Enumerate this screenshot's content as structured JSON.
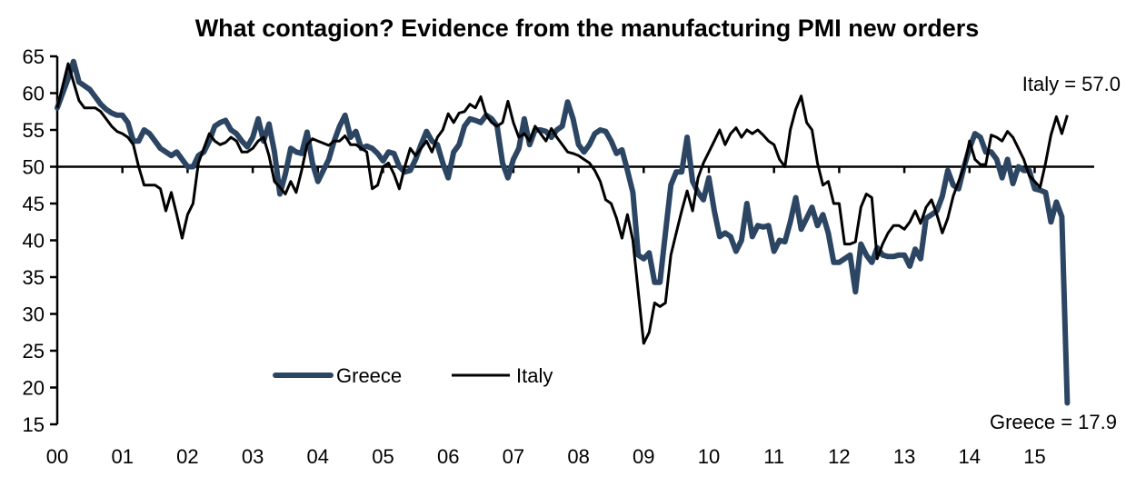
{
  "chart_data": {
    "type": "line",
    "title": "What contagion? Evidence from the manufacturing PMI new orders",
    "xlabel": "",
    "ylabel": "",
    "ylim": [
      15,
      65
    ],
    "yticks": [
      15,
      20,
      25,
      30,
      35,
      40,
      45,
      50,
      55,
      60,
      65
    ],
    "ytick_labels": [
      "15",
      "20",
      "25",
      "30",
      "35",
      "40",
      "45",
      "50",
      "55",
      "60",
      "65"
    ],
    "xtick_labels": [
      "00",
      "01",
      "02",
      "03",
      "04",
      "05",
      "06",
      "07",
      "08",
      "09",
      "10",
      "11",
      "12",
      "13",
      "14",
      "15"
    ],
    "x_start": "2000-01",
    "x_frequency": "monthly",
    "reference_line": 50,
    "grid": false,
    "legend_position": "bottom-left",
    "series": [
      {
        "name": "Greece",
        "color": "#2b4563",
        "values": [
          58,
          60,
          62,
          64.3,
          61.5,
          61,
          60.5,
          59.5,
          58.5,
          57.8,
          57.3,
          57,
          57,
          56,
          53.5,
          53.5,
          55,
          54.5,
          53.5,
          52.5,
          52,
          51.5,
          52,
          51,
          50,
          50,
          51.5,
          52,
          53.5,
          55.5,
          56,
          56.3,
          55,
          54.5,
          53.5,
          52.7,
          54,
          56.5,
          53.5,
          55.8,
          52,
          46.3,
          49,
          52.5,
          52,
          51.8,
          54.7,
          50.5,
          48,
          49.5,
          51,
          53.5,
          55.5,
          57,
          54,
          54.8,
          52.5,
          52.8,
          52.5,
          51.8,
          50.8,
          52,
          51.8,
          50,
          49.3,
          49.5,
          51,
          53,
          54.8,
          53.5,
          53,
          50.5,
          48.5,
          52,
          53,
          55.5,
          56.5,
          56.3,
          56,
          57,
          56.5,
          55.5,
          50.5,
          48.5,
          51,
          52.5,
          56.5,
          53,
          55,
          55,
          54.8,
          54,
          55,
          55.5,
          58.8,
          56.5,
          53,
          52,
          53,
          54.5,
          55,
          54.8,
          53.5,
          51.8,
          52.3,
          49.5,
          46.5,
          38,
          37.5,
          38.3,
          34.3,
          34.3,
          41,
          47.5,
          49.3,
          49.3,
          54,
          48,
          46.5,
          45.5,
          48.5,
          44,
          40.5,
          41,
          40.5,
          38.5,
          40,
          45,
          40.5,
          42,
          41.8,
          42,
          38.5,
          40,
          39.8,
          42.5,
          45.8,
          41.5,
          43,
          44.5,
          42,
          43.5,
          41,
          37,
          37,
          37.5,
          38,
          33,
          39.5,
          38,
          37,
          39,
          38,
          37.8,
          37.8,
          38,
          38,
          36.5,
          38.8,
          37.5,
          43,
          43.5,
          44,
          46,
          49.5,
          47.5,
          47,
          50,
          52.5,
          54.5,
          54,
          52,
          52,
          51,
          48.5,
          51,
          47.7,
          50,
          49.5,
          49.5,
          47,
          46.8,
          46.5,
          42.5,
          45.2,
          43.2,
          17.9
        ]
      },
      {
        "name": "Italy",
        "color": "#000000",
        "values": [
          58,
          61,
          64,
          61.5,
          59,
          58,
          58,
          58,
          57.5,
          56.5,
          55.5,
          54.8,
          54.5,
          54,
          53,
          50,
          47.5,
          47.5,
          47.5,
          47,
          44,
          46.5,
          43.5,
          40.3,
          43.5,
          45,
          50.5,
          52.5,
          54.5,
          53.5,
          53,
          53.3,
          54,
          53.5,
          52,
          52,
          52.5,
          53.5,
          54,
          51.5,
          48,
          47.2,
          46.3,
          48,
          46.5,
          49.5,
          53,
          53.8,
          53.5,
          53.2,
          52.9,
          53.5,
          53.5,
          54.2,
          53,
          53,
          52.5,
          52,
          47,
          47.5,
          50,
          50.5,
          49,
          47,
          50,
          52.5,
          51.5,
          52.5,
          53.5,
          52,
          54,
          55,
          57.2,
          56,
          57.3,
          57.5,
          58.5,
          58,
          59.5,
          57,
          56,
          55.5,
          56,
          58.9,
          56,
          54,
          54.5,
          53.5,
          55.5,
          54.5,
          53.5,
          55.2,
          54,
          53,
          52,
          51.8,
          51.5,
          51,
          50.5,
          49.5,
          48,
          45.5,
          45,
          43,
          40.3,
          43.5,
          40,
          33,
          26,
          27.5,
          31.5,
          31,
          31.5,
          38,
          41,
          44,
          46.7,
          44,
          48.5,
          50.5,
          52,
          53.5,
          55,
          53,
          54.5,
          55.3,
          54,
          55,
          54.5,
          55,
          54.3,
          53.5,
          53,
          51,
          50,
          55,
          57.8,
          59.6,
          56,
          55,
          50.5,
          47.5,
          48,
          45,
          45,
          39.5,
          39.5,
          39.8,
          44.5,
          46.3,
          45.8,
          37.5,
          39.5,
          41,
          42,
          42,
          41.5,
          42.5,
          44,
          42.3,
          44.5,
          45.5,
          43.5,
          41,
          43,
          46,
          48,
          50,
          53.5,
          51,
          50.3,
          50.3,
          54.3,
          54,
          53.5,
          54.8,
          54,
          52.5,
          51,
          48.8,
          48,
          47.2,
          50.5,
          54.3,
          56.8,
          54.5,
          57.0
        ]
      }
    ],
    "annotations": [
      {
        "series": "Italy",
        "text": "Italy = 57.0",
        "value": 57.0
      },
      {
        "series": "Greece",
        "text": "Greece = 17.9",
        "value": 17.9
      }
    ]
  }
}
